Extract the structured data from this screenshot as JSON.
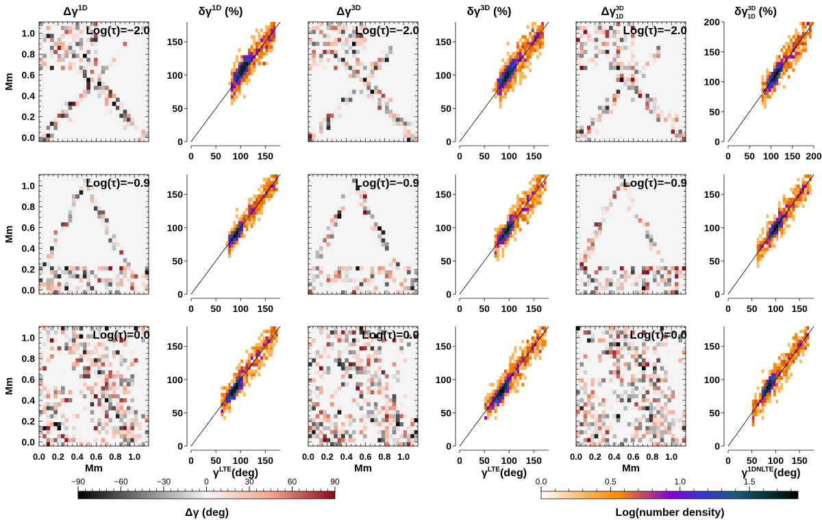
{
  "figure": {
    "column_titles": [
      {
        "base": "Δγ",
        "sup": "1D",
        "sub": ""
      },
      {
        "base": "δγ",
        "sup": "1D",
        "sub": "",
        "suffix": " (%)"
      },
      {
        "base": "Δγ",
        "sup": "3D",
        "sub": ""
      },
      {
        "base": "δγ",
        "sup": "3D",
        "sub": "",
        "suffix": " (%)"
      },
      {
        "base": "Δγ",
        "sup": "3D",
        "sub": "1D"
      },
      {
        "base": "δγ",
        "sup": "3D",
        "sub": "1D",
        "suffix": " (%)"
      }
    ],
    "row_labels": [
      "Log(τ)=−2.0",
      "Log(τ)=−0.9",
      "Log(τ)=0.0"
    ],
    "map_ylabel": "Mm",
    "map_xlabel": "Mm",
    "map_yticks": [
      "0.0",
      "0.2",
      "0.4",
      "0.6",
      "0.8",
      "1.0"
    ],
    "map_xticks": [
      "0.0",
      "0.2",
      "0.4",
      "0.6",
      "0.8",
      "1.0"
    ],
    "scatter_xlabels": [
      {
        "base": "γ",
        "sup": "LTE",
        "suffix": "(deg)"
      },
      {
        "base": "γ",
        "sup": "LTE",
        "suffix": "(deg)"
      },
      {
        "base": "γ",
        "sup": "1DNLTE",
        "suffix": "(deg)"
      }
    ],
    "colorbar_left": {
      "label": "Δγ (deg)",
      "ticks": [
        "−90",
        "−60",
        "−30",
        "0",
        "30",
        "60",
        "90"
      ],
      "range": [
        -90,
        90
      ],
      "colors": [
        "#000000",
        "#7f7f7f",
        "#f5f5f5",
        "#f8a58a",
        "#8b0a1a"
      ]
    },
    "colorbar_right": {
      "label": "Log(number density)",
      "ticks": [
        "0.0",
        "0.5",
        "1.0",
        "1.5"
      ],
      "range": [
        0,
        1.85
      ],
      "colors": [
        "#ffffff",
        "#ffb55a",
        "#ff8a00",
        "#8a00d8",
        "#3a30d8",
        "#1a5a8a",
        "#00302a",
        "#000000"
      ]
    }
  },
  "chart_data": [
    {
      "type": "heatmap",
      "title": "Δγ1D",
      "row_label": "Log(τ)=−2.0",
      "value_range_deg": [
        -90,
        90
      ],
      "structure": "diagonal"
    },
    {
      "type": "scatter",
      "title": "δγ1D (%)",
      "density_histogram": true,
      "xlim": [
        0,
        180
      ],
      "ylim": [
        0,
        180
      ],
      "xticks": [
        0,
        50,
        100,
        150
      ],
      "yticks": [
        0,
        50,
        100,
        150
      ],
      "cloud": {
        "x_range": [
          80,
          170
        ],
        "dense_center": [
          105,
          110
        ],
        "spread": 14
      }
    },
    {
      "type": "heatmap",
      "title": "Δγ3D",
      "row_label": "Log(τ)=−2.0",
      "value_range_deg": [
        -90,
        90
      ],
      "structure": "diagonal"
    },
    {
      "type": "scatter",
      "title": "δγ3D (%)",
      "density_histogram": true,
      "xlim": [
        0,
        180
      ],
      "ylim": [
        0,
        180
      ],
      "xticks": [
        0,
        50,
        100,
        150
      ],
      "yticks": [
        0,
        50,
        100,
        150
      ],
      "cloud": {
        "x_range": [
          80,
          170
        ],
        "dense_center": [
          95,
          100
        ],
        "spread": 16
      }
    },
    {
      "type": "heatmap",
      "title": "Δγ3D1D",
      "row_label": "Log(τ)=−2.0",
      "value_range_deg": [
        -90,
        90
      ],
      "structure": "diagonal"
    },
    {
      "type": "scatter",
      "title": "δγ3D1D (%)",
      "density_histogram": true,
      "xlim": [
        0,
        200
      ],
      "ylim": [
        0,
        200
      ],
      "xticks": [
        0,
        50,
        100,
        150,
        200
      ],
      "yticks": [
        0,
        50,
        100,
        150,
        200
      ],
      "cloud": {
        "x_range": [
          80,
          195
        ],
        "dense_center": [
          110,
          110
        ],
        "spread": 14
      }
    },
    {
      "type": "heatmap",
      "title": "Δγ1D",
      "row_label": "Log(τ)=−0.9",
      "value_range_deg": [
        -90,
        90
      ],
      "structure": "triangle"
    },
    {
      "type": "scatter",
      "title": "δγ1D (%)",
      "density_histogram": true,
      "xlim": [
        0,
        180
      ],
      "ylim": [
        0,
        180
      ],
      "xticks": [
        0,
        50,
        100,
        150
      ],
      "yticks": [
        0,
        50,
        100,
        150
      ],
      "cloud": {
        "x_range": [
          75,
          175
        ],
        "dense_center": [
          90,
          90
        ],
        "spread": 10
      }
    },
    {
      "type": "heatmap",
      "title": "Δγ3D",
      "row_label": "Log(τ)=−0.9",
      "value_range_deg": [
        -90,
        90
      ],
      "structure": "triangle"
    },
    {
      "type": "scatter",
      "title": "δγ3D (%)",
      "density_histogram": true,
      "xlim": [
        0,
        180
      ],
      "ylim": [
        0,
        180
      ],
      "xticks": [
        0,
        50,
        100,
        150
      ],
      "yticks": [
        0,
        50,
        100,
        150
      ],
      "cloud": {
        "x_range": [
          70,
          175
        ],
        "dense_center": [
          95,
          95
        ],
        "spread": 12
      }
    },
    {
      "type": "heatmap",
      "title": "Δγ3D1D",
      "row_label": "Log(τ)=−0.9",
      "value_range_deg": [
        -90,
        90
      ],
      "structure": "triangle"
    },
    {
      "type": "scatter",
      "title": "δγ3D1D (%)",
      "density_histogram": true,
      "xlim": [
        0,
        180
      ],
      "ylim": [
        0,
        180
      ],
      "xticks": [
        0,
        50,
        100,
        150
      ],
      "yticks": [
        0,
        50,
        100,
        150
      ],
      "cloud": {
        "x_range": [
          60,
          175
        ],
        "dense_center": [
          100,
          100
        ],
        "spread": 12
      }
    },
    {
      "type": "heatmap",
      "title": "Δγ1D",
      "row_label": "Log(τ)=0.0",
      "value_range_deg": [
        -90,
        90
      ],
      "structure": "diffuse"
    },
    {
      "type": "scatter",
      "title": "δγ1D (%)",
      "density_histogram": true,
      "xlim": [
        0,
        180
      ],
      "ylim": [
        0,
        180
      ],
      "xticks": [
        0,
        50,
        100,
        150
      ],
      "yticks": [
        0,
        50,
        100,
        150
      ],
      "cloud": {
        "x_range": [
          60,
          175
        ],
        "dense_center": [
          88,
          85
        ],
        "spread": 12
      }
    },
    {
      "type": "heatmap",
      "title": "Δγ3D",
      "row_label": "Log(τ)=0.0",
      "value_range_deg": [
        -90,
        90
      ],
      "structure": "diffuse"
    },
    {
      "type": "scatter",
      "title": "δγ3D (%)",
      "density_histogram": true,
      "xlim": [
        0,
        180
      ],
      "ylim": [
        0,
        180
      ],
      "xticks": [
        0,
        50,
        100,
        150
      ],
      "yticks": [
        0,
        50,
        100,
        150
      ],
      "cloud": {
        "x_range": [
          50,
          175
        ],
        "dense_center": [
          85,
          82
        ],
        "spread": 14
      }
    },
    {
      "type": "heatmap",
      "title": "Δγ3D1D",
      "row_label": "Log(τ)=0.0",
      "value_range_deg": [
        -90,
        90
      ],
      "structure": "diffuse"
    },
    {
      "type": "scatter",
      "title": "δγ3D1D (%)",
      "density_histogram": true,
      "xlim": [
        0,
        180
      ],
      "ylim": [
        0,
        180
      ],
      "xticks": [
        0,
        50,
        100,
        150
      ],
      "yticks": [
        0,
        50,
        100,
        150
      ],
      "cloud": {
        "x_range": [
          50,
          170
        ],
        "dense_center": [
          85,
          90
        ],
        "spread": 12
      }
    }
  ]
}
